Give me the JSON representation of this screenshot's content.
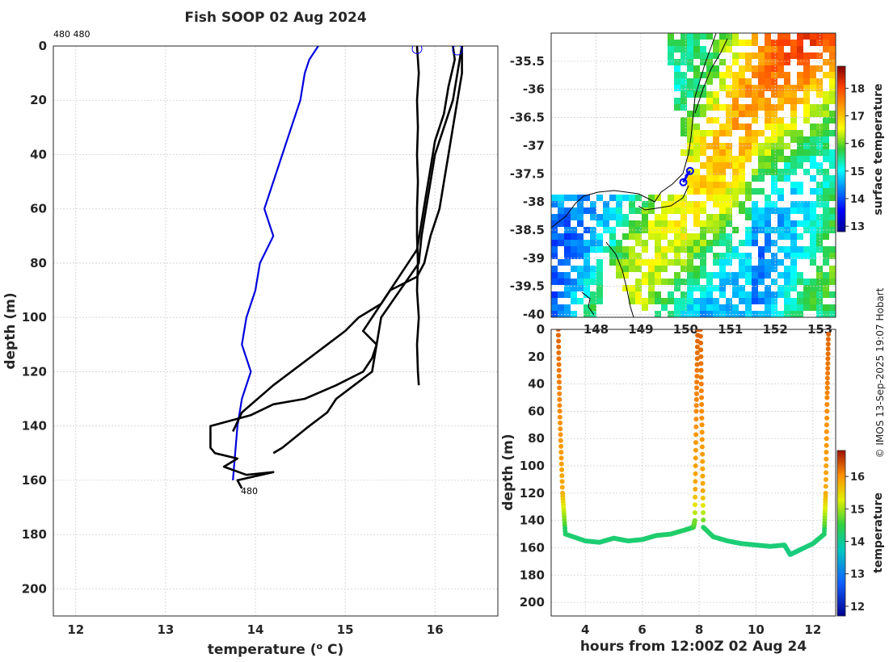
{
  "title": "Fish SOOP 02 Aug 2024",
  "watermark": "© IMOS 13-Sep-2025 19:07 Hobart",
  "colors": {
    "profile": "#000000",
    "climatology": "#0000dd",
    "marker": "#0000ff",
    "coast": "#000000"
  },
  "chart_data": [
    {
      "id": "profile",
      "type": "line",
      "title": "Fish SOOP 02 Aug 2024",
      "xlabel": "temperature (° C)",
      "ylabel": "depth (m)",
      "xlim": [
        11.75,
        16.7
      ],
      "ylim": [
        210,
        0
      ],
      "xticks": [
        12,
        13,
        14,
        15,
        16
      ],
      "yticks": [
        0,
        20,
        40,
        60,
        80,
        100,
        120,
        140,
        160,
        180,
        200
      ],
      "top_label": "480 480",
      "bottom_label": "480",
      "series": [
        {
          "name": "climatology",
          "color": "#0000dd",
          "x": [
            14.7,
            14.6,
            14.55,
            14.5,
            14.4,
            14.3,
            14.2,
            14.1,
            14.2,
            14.05,
            14.0,
            13.9,
            13.85,
            13.95,
            13.85,
            13.8,
            13.75
          ],
          "y": [
            0,
            5,
            10,
            20,
            30,
            40,
            50,
            60,
            70,
            80,
            90,
            100,
            110,
            120,
            130,
            140,
            160
          ]
        },
        {
          "name": "profile-a",
          "color": "#000000",
          "x": [
            15.8,
            15.82,
            15.8,
            15.81,
            15.8,
            15.81,
            15.8,
            15.8,
            15.81,
            15.8,
            15.82,
            15.8,
            15.81,
            15.82
          ],
          "y": [
            0,
            10,
            20,
            30,
            40,
            50,
            60,
            70,
            80,
            90,
            100,
            110,
            120,
            125
          ]
        },
        {
          "name": "profile-b",
          "color": "#000000",
          "x": [
            16.3,
            16.3,
            16.25,
            16.2,
            16.15,
            16.1,
            16.05,
            15.95,
            15.88,
            15.8,
            15.5,
            15.4,
            15.15,
            15.0,
            14.8,
            14.2,
            13.85,
            13.75
          ],
          "y": [
            0,
            10,
            20,
            30,
            40,
            50,
            60,
            70,
            80,
            85,
            90,
            95,
            100,
            105,
            110,
            125,
            135,
            142
          ]
        },
        {
          "name": "profile-c",
          "color": "#000000",
          "x": [
            16.3,
            16.25,
            16.2,
            16.1,
            16.0,
            15.95,
            15.9,
            15.85,
            15.82,
            15.4,
            15.35,
            15.3,
            15.1,
            14.9,
            14.8,
            14.6,
            14.45,
            14.3,
            14.2
          ],
          "y": [
            0,
            10,
            20,
            30,
            40,
            50,
            60,
            70,
            80,
            100,
            110,
            120,
            125,
            130,
            135,
            140,
            144,
            148,
            150
          ]
        },
        {
          "name": "profile-d",
          "color": "#000000",
          "x": [
            16.2,
            16.22,
            16.15,
            16.1,
            16.0,
            15.95,
            15.9,
            15.85,
            15.8,
            15.2,
            15.35,
            15.3,
            15.2,
            14.9,
            14.55,
            14.2,
            13.95,
            13.5,
            13.5,
            13.55,
            13.8,
            13.65,
            13.9,
            14.2,
            13.8,
            13.85
          ],
          "y": [
            0,
            5,
            15,
            25,
            35,
            45,
            55,
            65,
            75,
            105,
            110,
            115,
            120,
            125,
            130,
            132,
            136,
            140,
            148,
            150,
            152,
            155,
            158,
            157,
            160,
            163
          ]
        }
      ],
      "markers": [
        {
          "name": "start-circle-a",
          "x": 15.8,
          "y": 1
        },
        {
          "name": "start-circle-b",
          "x": 16.25,
          "y": 1.5
        }
      ]
    },
    {
      "id": "map",
      "type": "heatmap",
      "colorbar_label": "surface temperature",
      "colorbar_range": [
        12.8,
        18.8
      ],
      "colorbar_ticks": [
        13,
        14,
        15,
        16,
        17,
        18
      ],
      "lat_ticks": [
        -35.5,
        -36,
        -36.5,
        -37,
        -37.5,
        -38,
        -38.5,
        -39,
        -39.5,
        -40
      ],
      "lat_tick_labels": [
        "-35.5",
        "-36",
        "-36.5",
        "-37",
        "-37.5",
        "-38",
        "-38.5",
        "-39",
        "-39.5",
        "-40"
      ],
      "lon_ticks": [
        148,
        149,
        150,
        151,
        152,
        153
      ],
      "lon_tick_labels": [
        "148",
        "149",
        "150",
        "151",
        "152",
        "153"
      ],
      "lon_range": [
        147.0,
        153.35
      ],
      "lat_range": [
        -40.05,
        -35.0
      ],
      "track": [
        {
          "lon": 150.1,
          "lat": -37.45
        },
        {
          "lon": 150.0,
          "lat": -37.55
        },
        {
          "lon": 150.05,
          "lat": -37.5
        },
        {
          "lon": 149.95,
          "lat": -37.65
        }
      ]
    },
    {
      "id": "timeseries",
      "type": "scatter",
      "xlabel": "hours from 12:00Z 02 Aug 24",
      "ylabel": "depth (m)",
      "colorbar_label": "temperature",
      "colorbar_range": [
        11.7,
        16.8
      ],
      "colorbar_ticks": [
        12,
        13,
        14,
        15,
        16
      ],
      "xlim": [
        2.8,
        12.8
      ],
      "ylim": [
        210,
        0
      ],
      "xticks": [
        4,
        6,
        8,
        10,
        12
      ],
      "yticks": [
        0,
        20,
        40,
        60,
        80,
        100,
        120,
        140,
        160,
        180,
        200
      ],
      "segments": [
        {
          "t": [
            3.05,
            3.1,
            3.2,
            3.3
          ],
          "d": [
            0,
            60,
            120,
            150
          ]
        },
        {
          "t": [
            3.3,
            4.0,
            4.5,
            5.0,
            5.5,
            6.0,
            6.5,
            7.0,
            7.5,
            7.8,
            7.85
          ],
          "d": [
            150,
            155,
            156,
            153,
            155,
            154,
            151,
            150,
            147,
            145,
            140
          ]
        },
        {
          "t": [
            7.85,
            7.9,
            7.95,
            8.0
          ],
          "d": [
            140,
            60,
            0,
            0
          ]
        },
        {
          "t": [
            8.05,
            8.1,
            8.15
          ],
          "d": [
            0,
            70,
            145
          ]
        },
        {
          "t": [
            8.15,
            8.5,
            9.0,
            9.5,
            10.0,
            10.5,
            11.0,
            11.2,
            11.5,
            12.0,
            12.4
          ],
          "d": [
            145,
            152,
            155,
            157,
            158,
            159,
            158,
            165,
            162,
            157,
            150
          ]
        },
        {
          "t": [
            12.4,
            12.45,
            12.5,
            12.55
          ],
          "d": [
            150,
            120,
            50,
            0
          ]
        }
      ]
    }
  ]
}
